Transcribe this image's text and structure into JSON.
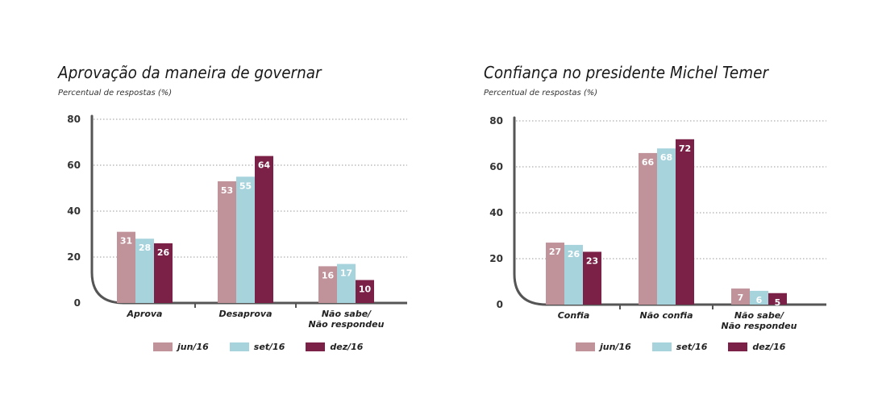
{
  "chart_data": [
    {
      "type": "bar",
      "title": "Aprovação da maneira de governar",
      "subtitle": "Percentual de respostas (%)",
      "xlabel": "",
      "ylabel": "",
      "ylim": [
        0,
        80
      ],
      "yticks": [
        0,
        20,
        40,
        60,
        80
      ],
      "grid": true,
      "categories": [
        "Aprova",
        "Desaprova",
        "Não sabe/\nNão respondeu"
      ],
      "series": [
        {
          "name": "jun/16",
          "color": "#c0939b",
          "values": [
            31,
            53,
            16
          ]
        },
        {
          "name": "set/16",
          "color": "#a7d3dd",
          "values": [
            28,
            55,
            17
          ]
        },
        {
          "name": "dez/16",
          "color": "#7b2148",
          "values": [
            26,
            64,
            10
          ]
        }
      ]
    },
    {
      "type": "bar",
      "title": "Confiança no presidente Michel Temer",
      "subtitle": "Percentual de respostas (%)",
      "xlabel": "",
      "ylabel": "",
      "ylim": [
        0,
        80
      ],
      "yticks": [
        0,
        20,
        40,
        60,
        80
      ],
      "grid": true,
      "categories": [
        "Confia",
        "Não confia",
        "Não sabe/\nNão respondeu"
      ],
      "series": [
        {
          "name": "jun/16",
          "color": "#c0939b",
          "values": [
            27,
            66,
            7
          ]
        },
        {
          "name": "set/16",
          "color": "#a7d3dd",
          "values": [
            26,
            68,
            6
          ]
        },
        {
          "name": "dez/16",
          "color": "#7b2148",
          "values": [
            23,
            72,
            5
          ]
        }
      ]
    }
  ]
}
